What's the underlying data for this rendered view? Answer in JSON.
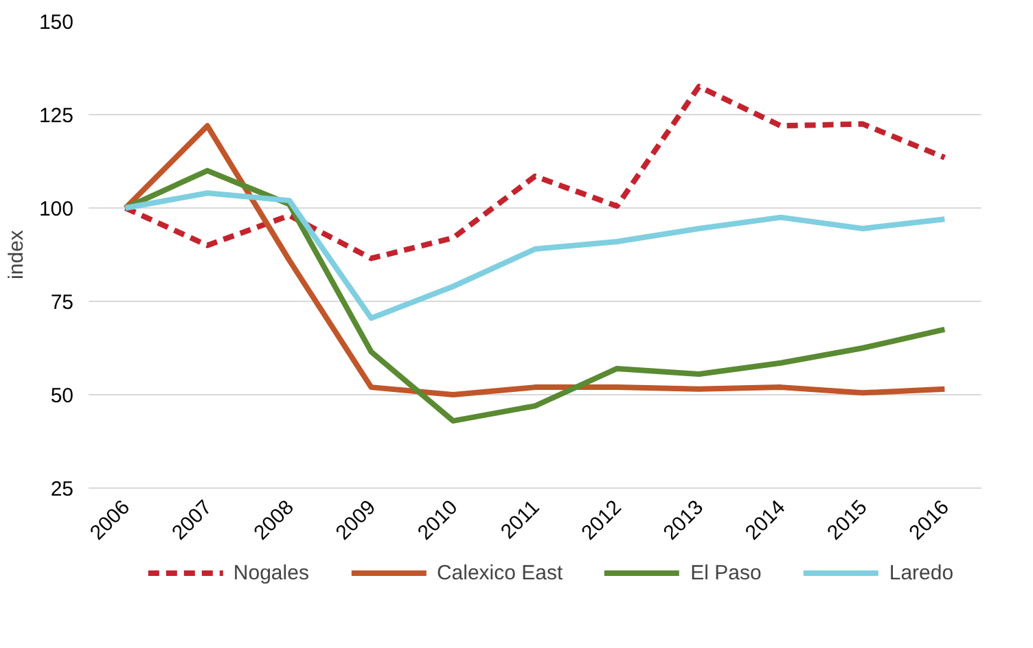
{
  "chart_data": {
    "type": "line",
    "ylabel": "index",
    "categories": [
      "2006",
      "2007",
      "2008",
      "2009",
      "2010",
      "2011",
      "2012",
      "2013",
      "2014",
      "2015",
      "2016"
    ],
    "series": [
      {
        "name": "Nogales",
        "color": "#c4232e",
        "line_style": "dashed",
        "values": [
          100,
          90,
          98,
          86.5,
          92,
          108.5,
          100.5,
          132.5,
          122,
          122.5,
          113.5
        ]
      },
      {
        "name": "Calexico East",
        "color": "#c0562a",
        "values": [
          100,
          122,
          86,
          52,
          50,
          52,
          52,
          51.5,
          52,
          50.5,
          51.5
        ]
      },
      {
        "name": "El Paso",
        "color": "#5a8a32",
        "values": [
          100,
          110,
          101,
          61.5,
          43,
          47,
          57,
          55.5,
          58.5,
          62.5,
          67.5
        ]
      },
      {
        "name": "Laredo",
        "color": "#7fcfe0",
        "values": [
          100,
          104,
          102,
          70.5,
          79,
          89,
          91,
          94.5,
          97.5,
          94.5,
          97
        ]
      }
    ],
    "ylim": [
      25,
      150
    ],
    "yticks": [
      25,
      50,
      75,
      100,
      125,
      150
    ],
    "grid": "y",
    "legend": "bottom",
    "line_style": "solid",
    "marker": "none"
  }
}
